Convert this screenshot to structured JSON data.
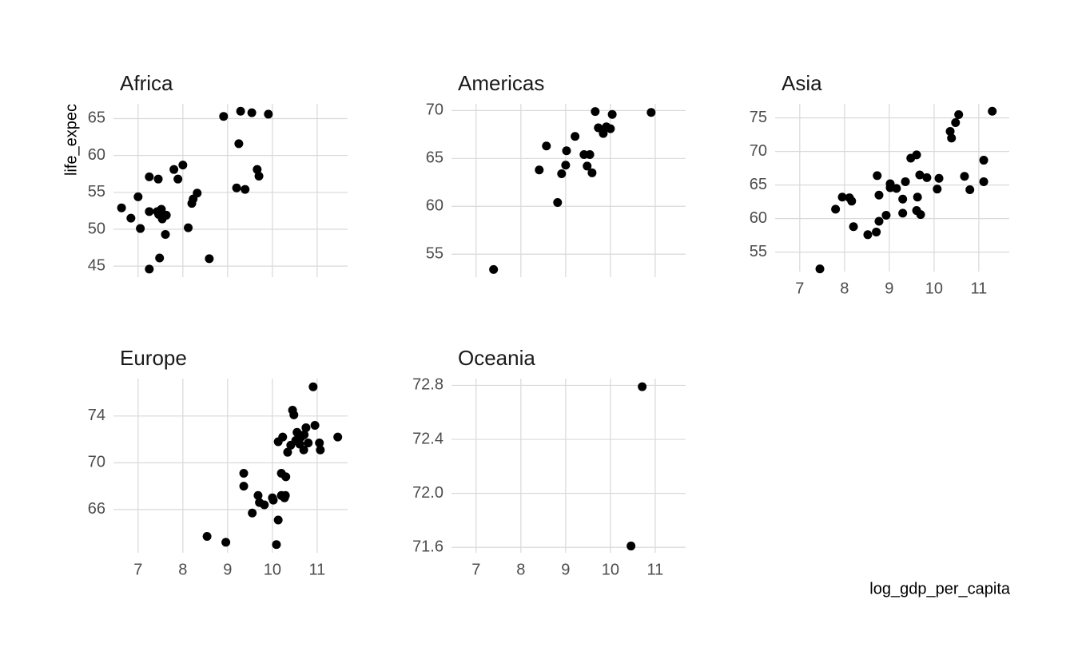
{
  "chart_data": [
    {
      "type": "scatter",
      "title": "Africa",
      "ylabel": "life_expec",
      "color": "#000000",
      "grid": true,
      "xlim": [
        6.45,
        11.68
      ],
      "xticks": [
        7,
        8,
        9,
        10,
        11
      ],
      "ylim": [
        43.5,
        67
      ],
      "yticks": [
        45,
        50,
        55,
        60,
        65
      ],
      "x": [
        6.63,
        6.84,
        7.0,
        7.05,
        7.25,
        7.25,
        7.25,
        7.45,
        7.43,
        7.48,
        7.52,
        7.46,
        7.54,
        7.63,
        7.61,
        7.8,
        7.89,
        8.0,
        8.12,
        8.2,
        8.23,
        8.32,
        8.59,
        8.91,
        9.2,
        9.25,
        9.29,
        9.39,
        9.54,
        9.66,
        9.7,
        9.91
      ],
      "values": [
        52.9,
        51.5,
        54.4,
        50.1,
        57.1,
        52.4,
        44.6,
        56.8,
        52.4,
        46.1,
        52.7,
        52.0,
        51.4,
        51.9,
        49.3,
        58.1,
        56.8,
        58.7,
        50.2,
        53.5,
        54.1,
        54.9,
        46.0,
        65.3,
        55.6,
        61.6,
        66.0,
        55.4,
        65.8,
        58.1,
        57.2,
        65.6
      ]
    },
    {
      "type": "scatter",
      "title": "Americas",
      "color": "#000000",
      "grid": true,
      "xlim": [
        6.45,
        11.68
      ],
      "xticks": [
        7,
        8,
        9,
        10,
        11
      ],
      "ylim": [
        52.6,
        70.7
      ],
      "yticks": [
        55,
        60,
        65,
        70
      ],
      "x": [
        7.39,
        8.41,
        8.57,
        8.82,
        8.91,
        9.0,
        9.02,
        9.21,
        9.41,
        9.48,
        9.54,
        9.59,
        9.66,
        9.73,
        9.84,
        9.91,
        10.0,
        10.04,
        10.91
      ],
      "values": [
        53.4,
        63.8,
        66.3,
        60.4,
        63.4,
        64.3,
        65.8,
        67.3,
        65.4,
        64.2,
        65.4,
        63.5,
        69.9,
        68.2,
        67.6,
        68.3,
        68.1,
        69.6,
        69.8
      ]
    },
    {
      "type": "scatter",
      "title": "Asia",
      "color": "#000000",
      "grid": true,
      "xlim": [
        6.45,
        11.68
      ],
      "xticks": [
        7,
        8,
        9,
        10,
        11
      ],
      "ylim": [
        52.1,
        77.1
      ],
      "yticks": [
        55,
        60,
        65,
        70,
        75
      ],
      "x": [
        7.45,
        7.8,
        7.95,
        8.11,
        8.16,
        8.2,
        8.52,
        8.71,
        8.73,
        8.77,
        8.77,
        8.93,
        9.02,
        9.02,
        9.16,
        9.3,
        9.3,
        9.36,
        9.48,
        9.61,
        9.63,
        9.61,
        9.68,
        9.7,
        9.84,
        10.07,
        10.11,
        10.36,
        10.39,
        10.48,
        10.55,
        10.68,
        10.8,
        11.11,
        11.11,
        11.3
      ],
      "values": [
        52.5,
        61.4,
        63.2,
        63.1,
        62.6,
        58.8,
        57.6,
        58.0,
        66.4,
        63.5,
        59.6,
        60.5,
        65.2,
        64.6,
        64.5,
        62.9,
        60.8,
        65.5,
        69.0,
        69.5,
        63.2,
        61.2,
        66.5,
        60.6,
        66.1,
        64.4,
        66.0,
        73.0,
        72.0,
        74.3,
        75.5,
        66.3,
        64.3,
        68.7,
        65.5,
        76.0
      ]
    },
    {
      "type": "scatter",
      "title": "Europe",
      "color": "#000000",
      "grid": true,
      "xlim": [
        6.45,
        11.68
      ],
      "xticks": [
        7,
        8,
        9,
        10,
        11
      ],
      "ylim": [
        62.3,
        77.2
      ],
      "yticks": [
        66,
        70,
        74
      ],
      "x": [
        10.91,
        8.54,
        8.96,
        9.36,
        9.36,
        9.55,
        9.68,
        9.71,
        9.82,
        10.0,
        10.02,
        10.13,
        10.09,
        10.13,
        10.2,
        10.2,
        10.23,
        10.29,
        10.3,
        10.27,
        10.34,
        10.41,
        10.45,
        10.48,
        10.52,
        10.55,
        10.61,
        10.64,
        10.7,
        10.71,
        10.75,
        10.8,
        10.95,
        11.05,
        11.07,
        11.46
      ],
      "values": [
        76.5,
        63.7,
        63.2,
        69.1,
        68.0,
        65.7,
        67.2,
        66.6,
        66.4,
        67.0,
        66.8,
        65.1,
        63.0,
        71.8,
        67.2,
        69.1,
        72.2,
        67.2,
        68.8,
        67.0,
        70.9,
        71.5,
        74.5,
        74.1,
        71.9,
        72.6,
        71.6,
        72.2,
        71.1,
        72.4,
        73.0,
        71.7,
        73.2,
        71.7,
        71.1,
        72.2
      ]
    },
    {
      "type": "scatter",
      "title": "Oceania",
      "xlabel": "log_gdp_per_capita",
      "color": "#000000",
      "grid": true,
      "xlim": [
        6.45,
        11.68
      ],
      "xticks": [
        7,
        8,
        9,
        10,
        11
      ],
      "ylim": [
        71.56,
        72.85
      ],
      "yticks": [
        71.6,
        {
          "value": 72,
          "label": "72.0"
        },
        72.4,
        72.8
      ],
      "x": [
        10.71,
        10.46
      ],
      "values": [
        72.79,
        71.61
      ]
    }
  ]
}
